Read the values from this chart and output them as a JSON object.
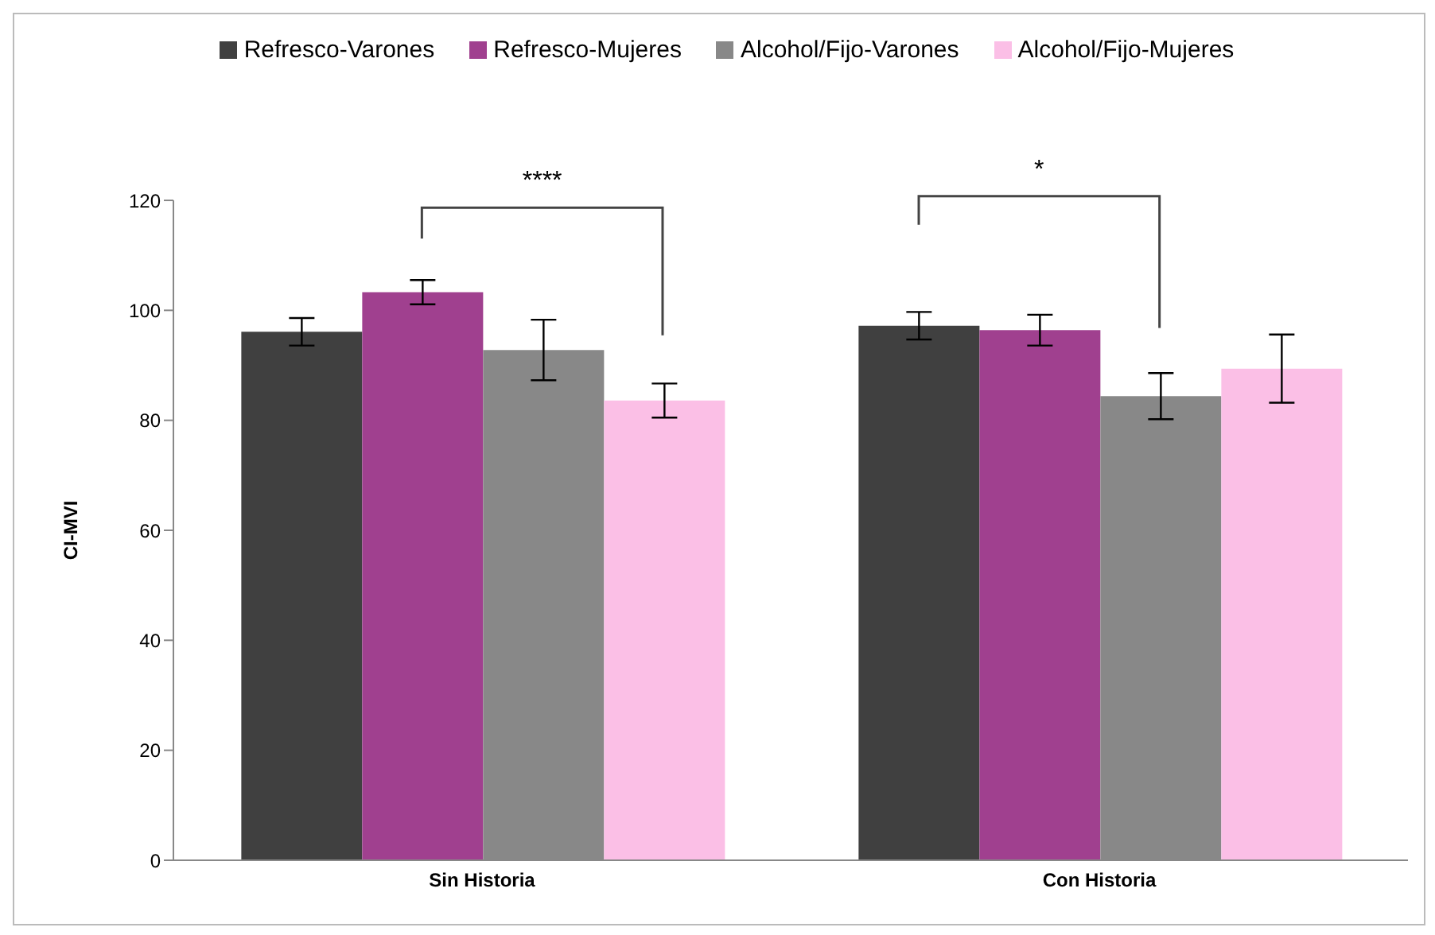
{
  "chart_data": {
    "type": "bar",
    "ylabel": "CI-MVI",
    "categories": [
      "Sin Historia",
      "Con Historia"
    ],
    "series": [
      {
        "name": "Refresco-Varones",
        "color": "#404040",
        "values": [
          96.1,
          97.2
        ],
        "errors": [
          2.5,
          2.5
        ]
      },
      {
        "name": "Refresco-Mujeres",
        "color": "#a0408f",
        "values": [
          103.3,
          96.4
        ],
        "errors": [
          2.2,
          2.8
        ]
      },
      {
        "name": "Alcohol/Fijo-Varones",
        "color": "#888888",
        "values": [
          92.8,
          84.4
        ],
        "errors": [
          5.5,
          4.2
        ]
      },
      {
        "name": "Alcohol/Fijo-Mujeres",
        "color": "#fbbfe6",
        "values": [
          83.6,
          89.4
        ],
        "errors": [
          3.1,
          6.2
        ]
      }
    ],
    "ylim": [
      0,
      120
    ],
    "yticks": [
      0,
      20,
      40,
      60,
      80,
      100,
      120
    ],
    "legend": "top",
    "annotations": [
      "****",
      "*"
    ]
  }
}
